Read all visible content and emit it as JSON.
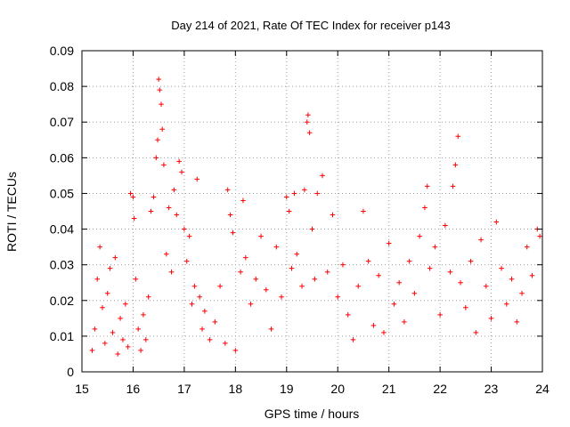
{
  "chart_data": {
    "type": "scatter",
    "title": "Day 214 of 2021, Rate Of TEC Index for receiver p143",
    "xlabel": "GPS time / hours",
    "ylabel": "ROTI / TECUs",
    "xlim": [
      15,
      24
    ],
    "ylim": [
      0,
      0.09
    ],
    "x_ticks": [
      "15",
      "16",
      "17",
      "18",
      "19",
      "20",
      "21",
      "22",
      "23",
      "24"
    ],
    "y_ticks": [
      "0",
      "0.01",
      "0.02",
      "0.03",
      "0.04",
      "0.05",
      "0.06",
      "0.07",
      "0.08",
      "0.09"
    ],
    "x_tick_values": [
      15,
      16,
      17,
      18,
      19,
      20,
      21,
      22,
      23,
      24
    ],
    "y_tick_values": [
      0,
      0.01,
      0.02,
      0.03,
      0.04,
      0.05,
      0.06,
      0.07,
      0.08,
      0.09
    ],
    "grid": true,
    "marker": "+",
    "color": "#ff0000",
    "series": [
      {
        "name": "ROTI",
        "points": [
          [
            15.2,
            0.006
          ],
          [
            15.25,
            0.012
          ],
          [
            15.3,
            0.026
          ],
          [
            15.35,
            0.035
          ],
          [
            15.4,
            0.018
          ],
          [
            15.45,
            0.008
          ],
          [
            15.5,
            0.022
          ],
          [
            15.55,
            0.029
          ],
          [
            15.6,
            0.011
          ],
          [
            15.65,
            0.032
          ],
          [
            15.7,
            0.005
          ],
          [
            15.75,
            0.015
          ],
          [
            15.8,
            0.009
          ],
          [
            15.85,
            0.019
          ],
          [
            15.9,
            0.007
          ],
          [
            15.95,
            0.05
          ],
          [
            16.0,
            0.049
          ],
          [
            16.02,
            0.043
          ],
          [
            16.05,
            0.026
          ],
          [
            16.1,
            0.012
          ],
          [
            16.15,
            0.006
          ],
          [
            16.2,
            0.016
          ],
          [
            16.25,
            0.009
          ],
          [
            16.3,
            0.021
          ],
          [
            16.35,
            0.045
          ],
          [
            16.4,
            0.049
          ],
          [
            16.45,
            0.06
          ],
          [
            16.48,
            0.065
          ],
          [
            16.5,
            0.082
          ],
          [
            16.52,
            0.079
          ],
          [
            16.55,
            0.075
          ],
          [
            16.57,
            0.068
          ],
          [
            16.6,
            0.058
          ],
          [
            16.65,
            0.033
          ],
          [
            16.7,
            0.046
          ],
          [
            16.75,
            0.028
          ],
          [
            16.8,
            0.051
          ],
          [
            16.85,
            0.044
          ],
          [
            16.9,
            0.059
          ],
          [
            16.95,
            0.056
          ],
          [
            17.0,
            0.04
          ],
          [
            17.05,
            0.031
          ],
          [
            17.1,
            0.038
          ],
          [
            17.15,
            0.019
          ],
          [
            17.2,
            0.024
          ],
          [
            17.25,
            0.054
          ],
          [
            17.3,
            0.021
          ],
          [
            17.35,
            0.012
          ],
          [
            17.4,
            0.017
          ],
          [
            17.5,
            0.009
          ],
          [
            17.6,
            0.014
          ],
          [
            17.7,
            0.024
          ],
          [
            17.8,
            0.008
          ],
          [
            17.85,
            0.051
          ],
          [
            17.9,
            0.044
          ],
          [
            17.95,
            0.039
          ],
          [
            18.0,
            0.006
          ],
          [
            18.1,
            0.028
          ],
          [
            18.15,
            0.048
          ],
          [
            18.2,
            0.032
          ],
          [
            18.3,
            0.019
          ],
          [
            18.4,
            0.026
          ],
          [
            18.5,
            0.038
          ],
          [
            18.6,
            0.023
          ],
          [
            18.7,
            0.012
          ],
          [
            18.8,
            0.035
          ],
          [
            18.9,
            0.021
          ],
          [
            19.0,
            0.049
          ],
          [
            19.05,
            0.045
          ],
          [
            19.1,
            0.029
          ],
          [
            19.15,
            0.05
          ],
          [
            19.2,
            0.033
          ],
          [
            19.3,
            0.024
          ],
          [
            19.35,
            0.051
          ],
          [
            19.4,
            0.07
          ],
          [
            19.42,
            0.072
          ],
          [
            19.45,
            0.067
          ],
          [
            19.5,
            0.04
          ],
          [
            19.55,
            0.026
          ],
          [
            19.6,
            0.05
          ],
          [
            19.7,
            0.055
          ],
          [
            19.8,
            0.028
          ],
          [
            19.9,
            0.044
          ],
          [
            20.0,
            0.021
          ],
          [
            20.1,
            0.03
          ],
          [
            20.2,
            0.016
          ],
          [
            20.3,
            0.009
          ],
          [
            20.4,
            0.024
          ],
          [
            20.5,
            0.045
          ],
          [
            20.6,
            0.031
          ],
          [
            20.7,
            0.013
          ],
          [
            20.8,
            0.027
          ],
          [
            20.9,
            0.011
          ],
          [
            21.0,
            0.036
          ],
          [
            21.1,
            0.019
          ],
          [
            21.2,
            0.025
          ],
          [
            21.3,
            0.014
          ],
          [
            21.4,
            0.031
          ],
          [
            21.5,
            0.022
          ],
          [
            21.6,
            0.038
          ],
          [
            21.7,
            0.046
          ],
          [
            21.75,
            0.052
          ],
          [
            21.8,
            0.029
          ],
          [
            21.9,
            0.035
          ],
          [
            22.0,
            0.016
          ],
          [
            22.1,
            0.041
          ],
          [
            22.2,
            0.028
          ],
          [
            22.25,
            0.052
          ],
          [
            22.3,
            0.058
          ],
          [
            22.35,
            0.066
          ],
          [
            22.4,
            0.025
          ],
          [
            22.5,
            0.018
          ],
          [
            22.6,
            0.031
          ],
          [
            22.7,
            0.011
          ],
          [
            22.8,
            0.037
          ],
          [
            22.9,
            0.024
          ],
          [
            23.0,
            0.015
          ],
          [
            23.1,
            0.042
          ],
          [
            23.2,
            0.029
          ],
          [
            23.3,
            0.019
          ],
          [
            23.4,
            0.026
          ],
          [
            23.5,
            0.014
          ],
          [
            23.6,
            0.022
          ],
          [
            23.7,
            0.035
          ],
          [
            23.8,
            0.027
          ],
          [
            23.9,
            0.04
          ],
          [
            23.95,
            0.038
          ]
        ]
      }
    ]
  }
}
